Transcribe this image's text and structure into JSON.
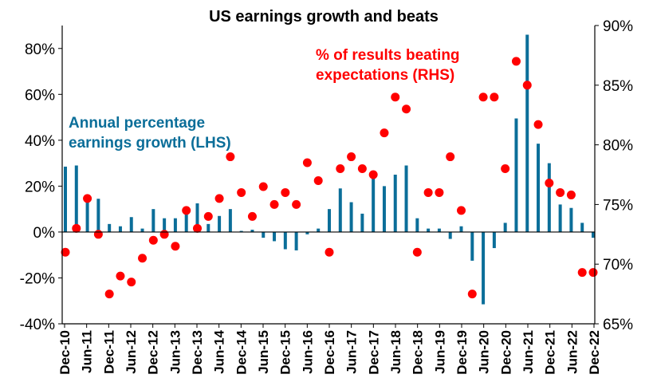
{
  "chart_data": {
    "type": "bar+scatter",
    "title": "US earnings growth and beats",
    "colors": {
      "bars": "#0B6E99",
      "dots": "#FF0000",
      "axis": "#000000"
    },
    "x_ticks": [
      "Dec-10",
      "Jun-11",
      "Dec-11",
      "Jun-12",
      "Dec-12",
      "Jun-13",
      "Dec-13",
      "Jun-14",
      "Dec-14",
      "Jun-15",
      "Dec-15",
      "Jun-16",
      "Dec-16",
      "Jun-17",
      "Dec-17",
      "Jun-18",
      "Dec-18",
      "Jun-19",
      "Dec-19",
      "Jun-20",
      "Dec-20",
      "Jun-21",
      "Dec-21",
      "Jun-22",
      "Dec-22"
    ],
    "left_axis": {
      "ylim": [
        -40,
        90
      ],
      "ticks": [
        "-40%",
        "-20%",
        "0%",
        "20%",
        "40%",
        "60%",
        "80%"
      ]
    },
    "right_axis": {
      "ylim": [
        65,
        90
      ],
      "ticks": [
        "65%",
        "70%",
        "75%",
        "80%",
        "85%",
        "90%"
      ]
    },
    "series": [
      {
        "name": "Annual percentage earnings growth (LHS)",
        "kind": "bar",
        "axis": "left",
        "values": [
          28.5,
          29,
          16,
          14.5,
          3.5,
          2.5,
          6.5,
          1.5,
          10,
          6,
          6,
          9,
          12.5,
          3.5,
          7,
          10,
          0.5,
          1,
          -2.5,
          -4,
          -7.5,
          -8,
          -1,
          1.5,
          10,
          19,
          13,
          8,
          25,
          20,
          25,
          29,
          6,
          1.5,
          1.5,
          -3,
          2.5,
          -12.5,
          -31.5,
          -7,
          4,
          49.5,
          86,
          38.5,
          30,
          12,
          10.5,
          4,
          -2.5
        ]
      },
      {
        "name": "% of results beating expectations (RHS)",
        "kind": "scatter",
        "axis": "right",
        "points": [
          [
            0,
            71
          ],
          [
            2,
            73
          ],
          [
            4,
            75.5
          ],
          [
            6,
            72.5
          ],
          [
            8,
            67.5
          ],
          [
            10,
            69
          ],
          [
            12,
            68.5
          ],
          [
            14,
            70.5
          ],
          [
            16,
            72
          ],
          [
            18,
            72.5
          ],
          [
            20,
            71.5
          ],
          [
            22,
            74.5
          ],
          [
            24,
            73
          ],
          [
            26,
            74
          ],
          [
            28,
            75.5
          ],
          [
            30,
            79
          ],
          [
            32,
            76
          ],
          [
            34,
            74
          ],
          [
            36,
            76.5
          ],
          [
            38,
            75
          ],
          [
            40,
            76
          ],
          [
            42,
            75
          ],
          [
            44,
            78.5
          ],
          [
            46,
            77
          ],
          [
            48,
            71
          ],
          [
            50,
            78
          ],
          [
            52,
            79
          ],
          [
            54,
            78
          ],
          [
            56,
            77.5
          ],
          [
            58,
            81
          ],
          [
            60,
            84
          ],
          [
            62,
            83
          ],
          [
            64,
            71
          ],
          [
            66,
            76
          ],
          [
            68,
            76
          ],
          [
            70,
            79
          ],
          [
            72,
            74.5
          ],
          [
            74,
            67.5
          ],
          [
            76,
            84
          ],
          [
            78,
            84
          ],
          [
            80,
            78
          ],
          [
            82,
            87
          ],
          [
            84,
            85
          ],
          [
            86,
            81.7
          ],
          [
            88,
            76.8
          ],
          [
            90,
            76
          ],
          [
            92,
            75.8
          ],
          [
            94,
            69.3
          ],
          [
            96,
            69.3
          ]
        ]
      }
    ],
    "annotations": {
      "lhs_line1": "Annual percentage",
      "lhs_line2": "earnings growth (LHS)",
      "rhs_line1": "% of results beating",
      "rhs_line2": "expectations (RHS)"
    }
  }
}
